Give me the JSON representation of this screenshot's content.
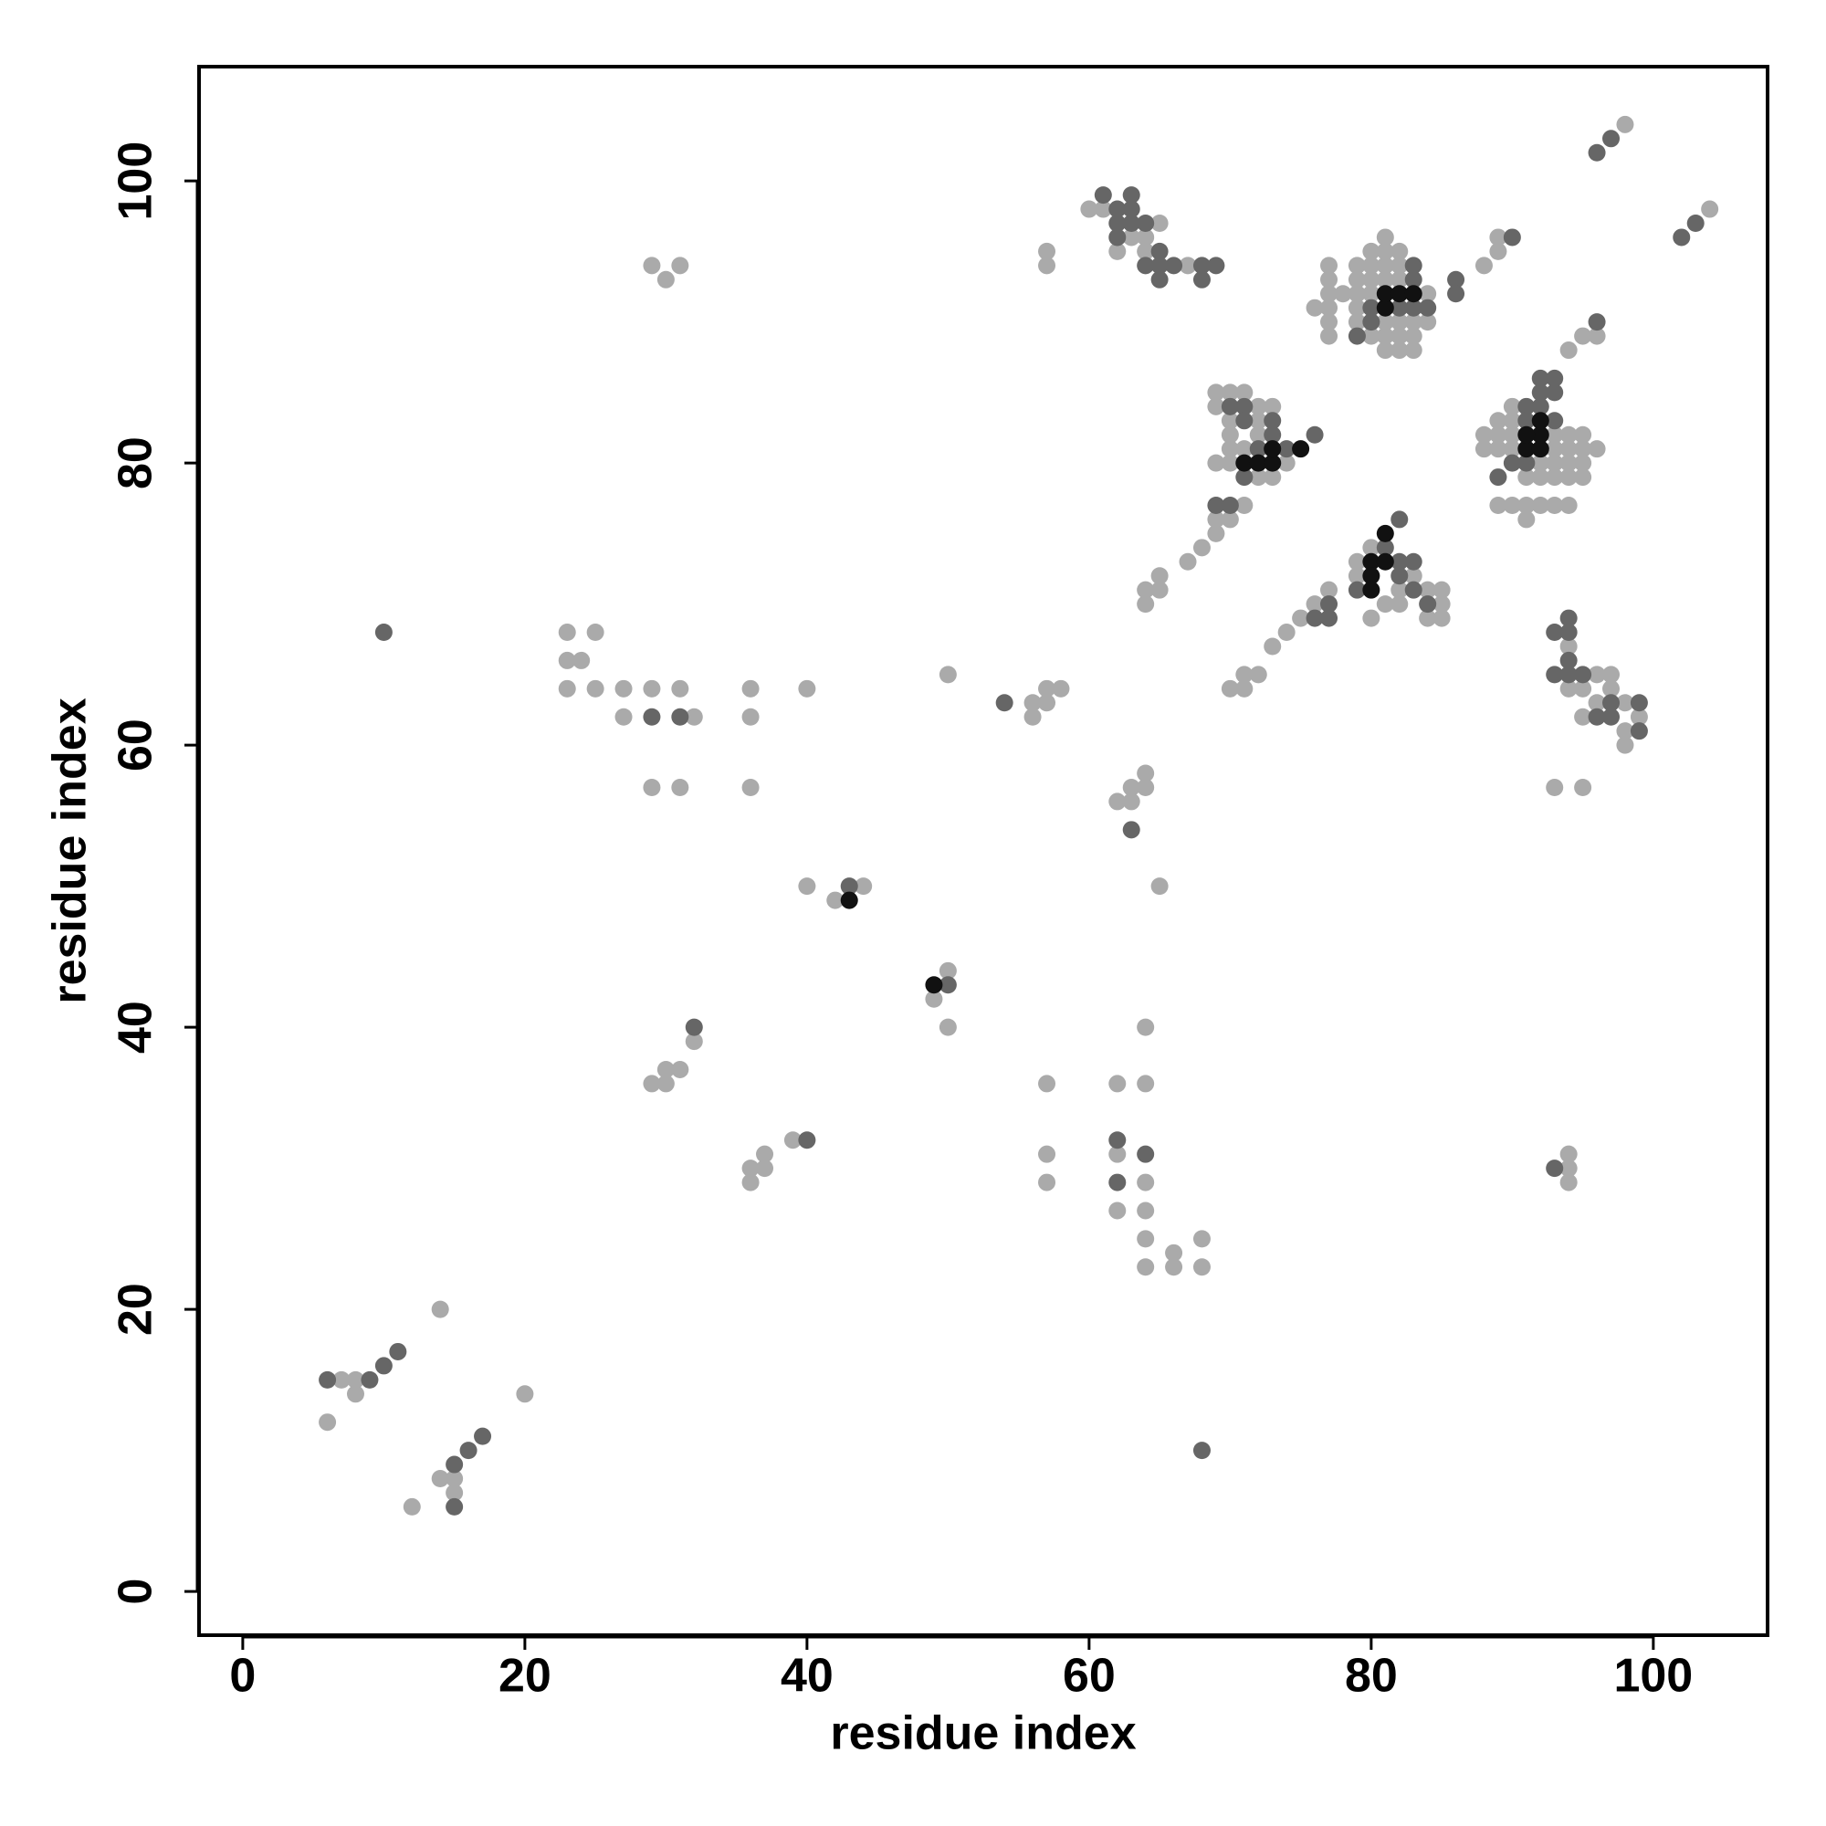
{
  "chart_data": {
    "type": "scatter",
    "xlabel": "residue index",
    "ylabel": "residue index",
    "xlim": [
      -3.1,
      108.1
    ],
    "ylim": [
      -3.1,
      108.1
    ],
    "xticks": [
      0,
      20,
      40,
      60,
      80,
      100
    ],
    "yticks": [
      0,
      20,
      40,
      60,
      80,
      100
    ],
    "series": [
      {
        "color": "#aaaaaa",
        "x": [
          6,
          7,
          8,
          8,
          14,
          20,
          12,
          14,
          15,
          15,
          29,
          30,
          30,
          31,
          32,
          36,
          36,
          37,
          37,
          39,
          29,
          30,
          31,
          23,
          23,
          24,
          25,
          23,
          25,
          27,
          27,
          29,
          31,
          32,
          29,
          31,
          36,
          36,
          36,
          40,
          40,
          42,
          44,
          49,
          50,
          50,
          50,
          56,
          56,
          57,
          57,
          58,
          57,
          57,
          57,
          57,
          57,
          62,
          62,
          62,
          64,
          64,
          64,
          64,
          64,
          64,
          66,
          66,
          68,
          68,
          62,
          63,
          63,
          64,
          64,
          65,
          94,
          94,
          94,
          64,
          64,
          65,
          65,
          67,
          68,
          69,
          69,
          70,
          71,
          70,
          71,
          71,
          72,
          73,
          74,
          75,
          76,
          77,
          60,
          61,
          62,
          63,
          64,
          65,
          64,
          67,
          69,
          70,
          71,
          69,
          70,
          70,
          70,
          70,
          72,
          73,
          72,
          72,
          73,
          74,
          71,
          72,
          69,
          77,
          77,
          77,
          77,
          77,
          77,
          76,
          78,
          79,
          79,
          79,
          79,
          79,
          80,
          80,
          80,
          80,
          80,
          81,
          81,
          81,
          81,
          81,
          81,
          81,
          82,
          82,
          82,
          82,
          82,
          82,
          83,
          83,
          83,
          84,
          84,
          88,
          89,
          89,
          88,
          88,
          89,
          89,
          89,
          89,
          90,
          90,
          90,
          90,
          90,
          91,
          91,
          91,
          92,
          92,
          92,
          93,
          93,
          93,
          93,
          93,
          94,
          94,
          94,
          94,
          94,
          95,
          95,
          95,
          95,
          96,
          79,
          79,
          80,
          80,
          81,
          82,
          82,
          83,
          84,
          85,
          85,
          85,
          84,
          94,
          94,
          95,
          96,
          97,
          97,
          96,
          98,
          99,
          98,
          98,
          95,
          93,
          95,
          94,
          95,
          96,
          98,
          104
        ],
        "values": [
          12,
          15,
          15,
          14,
          20,
          14,
          6,
          8,
          8,
          7,
          36,
          36,
          37,
          37,
          39,
          29,
          30,
          30,
          31,
          32,
          94,
          93,
          94,
          68,
          66,
          66,
          68,
          64,
          64,
          64,
          62,
          64,
          64,
          62,
          57,
          57,
          64,
          62,
          57,
          64,
          50,
          49,
          50,
          42,
          44,
          40,
          65,
          62,
          63,
          63,
          64,
          64,
          95,
          94,
          36,
          31,
          29,
          36,
          31,
          27,
          40,
          36,
          29,
          27,
          25,
          23,
          24,
          23,
          25,
          23,
          56,
          56,
          57,
          57,
          58,
          50,
          30,
          31,
          29,
          70,
          71,
          71,
          72,
          73,
          74,
          75,
          76,
          76,
          77,
          64,
          64,
          65,
          65,
          67,
          68,
          69,
          70,
          71,
          98,
          98,
          95,
          96,
          96,
          97,
          95,
          94,
          85,
          85,
          85,
          84,
          83,
          82,
          81,
          80,
          84,
          84,
          83,
          79,
          79,
          80,
          81,
          82,
          80,
          89,
          90,
          91,
          92,
          93,
          94,
          91,
          92,
          90,
          91,
          92,
          93,
          94,
          89,
          92,
          93,
          94,
          95,
          88,
          89,
          90,
          93,
          94,
          95,
          96,
          88,
          89,
          90,
          93,
          94,
          95,
          88,
          89,
          90,
          90,
          92,
          94,
          95,
          96,
          81,
          82,
          77,
          81,
          82,
          83,
          77,
          81,
          82,
          83,
          84,
          76,
          77,
          79,
          77,
          79,
          80,
          77,
          79,
          80,
          81,
          82,
          77,
          79,
          80,
          81,
          82,
          79,
          80,
          81,
          82,
          81,
          73,
          72,
          74,
          69,
          70,
          70,
          71,
          72,
          71,
          71,
          70,
          69,
          69,
          67,
          64,
          64,
          65,
          65,
          64,
          63,
          63,
          62,
          61,
          60,
          62,
          57,
          57,
          88,
          89,
          89,
          104,
          98
        ]
      },
      {
        "color": "#666666",
        "x": [
          6,
          9,
          10,
          11,
          15,
          16,
          17,
          15,
          10,
          68,
          32,
          40,
          29,
          31,
          43,
          50,
          54,
          62,
          62,
          64,
          63,
          93,
          69,
          70,
          77,
          76,
          77,
          61,
          62,
          62,
          62,
          63,
          63,
          63,
          64,
          64,
          65,
          65,
          65,
          66,
          68,
          68,
          69,
          70,
          71,
          71,
          73,
          72,
          73,
          71,
          74,
          76,
          79,
          80,
          80,
          83,
          83,
          84,
          86,
          86,
          82,
          83,
          90,
          89,
          90,
          91,
          91,
          92,
          92,
          93,
          93,
          91,
          79,
          81,
          82,
          82,
          83,
          83,
          84,
          82,
          93,
          94,
          94,
          94,
          93,
          94,
          95,
          96,
          97,
          97,
          99,
          99,
          96,
          93,
          92,
          96,
          97,
          102,
          103
        ],
        "values": [
          15,
          15,
          16,
          17,
          9,
          10,
          11,
          6,
          68,
          10,
          40,
          32,
          62,
          62,
          50,
          43,
          63,
          32,
          29,
          31,
          54,
          30,
          77,
          77,
          70,
          69,
          69,
          99,
          98,
          97,
          96,
          99,
          98,
          97,
          97,
          94,
          95,
          94,
          93,
          94,
          94,
          93,
          94,
          84,
          84,
          83,
          83,
          81,
          82,
          79,
          81,
          82,
          89,
          90,
          91,
          94,
          93,
          91,
          93,
          92,
          91,
          91,
          96,
          79,
          80,
          84,
          83,
          84,
          85,
          85,
          83,
          80,
          71,
          74,
          76,
          73,
          73,
          71,
          70,
          72,
          68,
          69,
          68,
          66,
          65,
          65,
          65,
          62,
          63,
          62,
          63,
          61,
          90,
          86,
          86,
          102,
          103,
          96,
          97
        ]
      },
      {
        "color": "#111111",
        "x": [
          43,
          49,
          71,
          72,
          73,
          73,
          75,
          81,
          81,
          82,
          83,
          91,
          92,
          92,
          92,
          91,
          80,
          80,
          80,
          81,
          81
        ],
        "values": [
          49,
          43,
          80,
          80,
          80,
          81,
          81,
          91,
          92,
          92,
          92,
          81,
          81,
          82,
          83,
          82,
          73,
          72,
          71,
          75,
          73
        ]
      }
    ]
  }
}
